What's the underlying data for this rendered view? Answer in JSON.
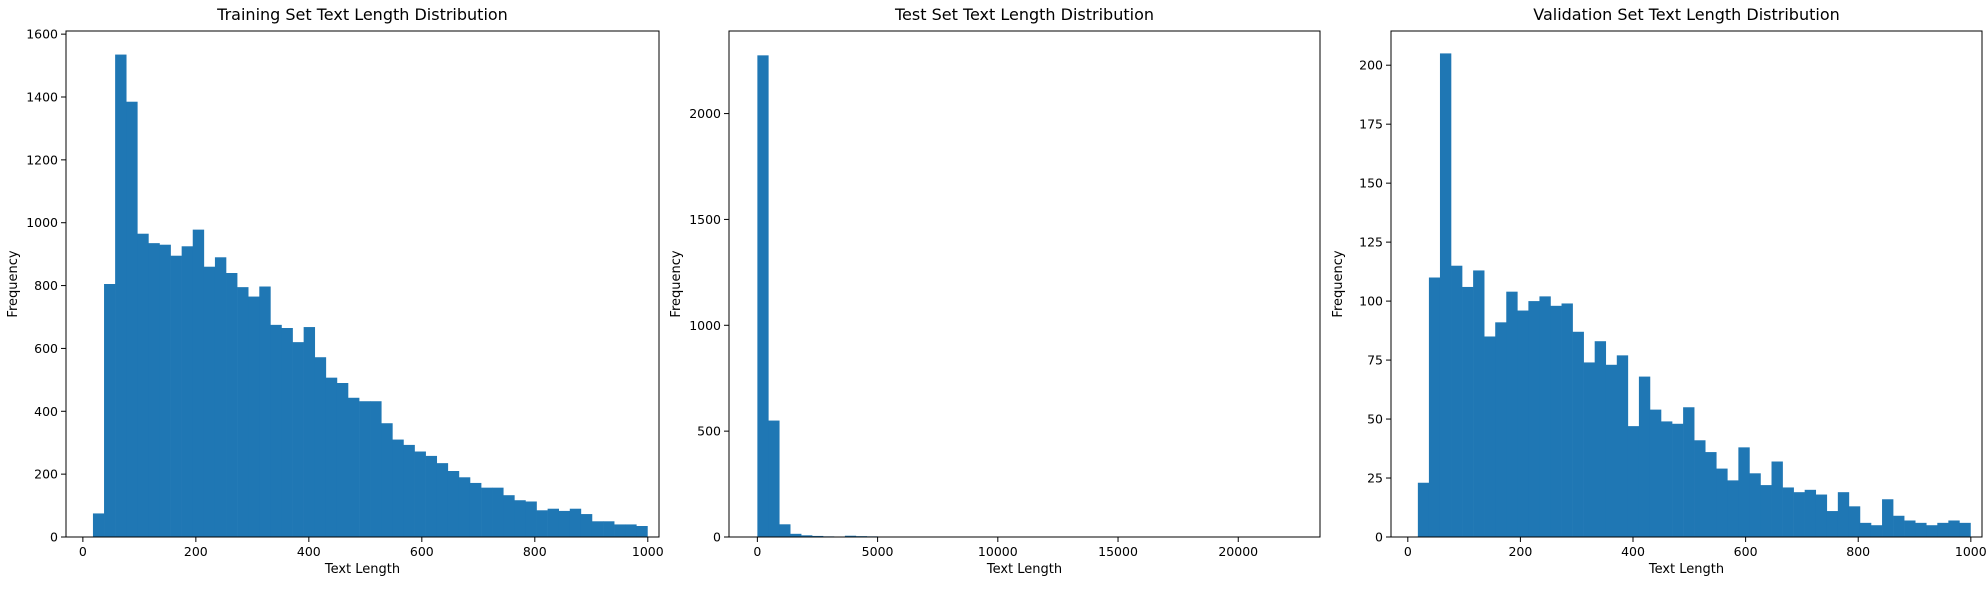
{
  "chart_data": [
    {
      "type": "bar",
      "title": "Training Set Text Length Distribution",
      "xlabel": "Text Length",
      "ylabel": "Frequency",
      "xlim": [
        -29.85,
        1019.85
      ],
      "ylim": [
        0,
        1610
      ],
      "xticks": [
        0,
        200,
        400,
        600,
        800,
        1000
      ],
      "yticks": [
        0,
        200,
        400,
        600,
        800,
        1000,
        1200,
        1400,
        1600
      ],
      "bin_start": 17.85,
      "bin_width": 19.63,
      "values": [
        75,
        805,
        1535,
        1385,
        965,
        935,
        930,
        895,
        925,
        978,
        860,
        890,
        840,
        795,
        765,
        797,
        675,
        665,
        620,
        668,
        572,
        507,
        490,
        443,
        432,
        432,
        362,
        310,
        293,
        272,
        258,
        235,
        210,
        190,
        172,
        157,
        157,
        133,
        117,
        113,
        85,
        90,
        83,
        90,
        73,
        50,
        50,
        40,
        40,
        35
      ],
      "color": "#1f77b4"
    },
    {
      "type": "bar",
      "title": "Test Set Text Length Distribution",
      "xlabel": "Text Length",
      "ylabel": "Frequency",
      "xlim": [
        -1180,
        23400
      ],
      "ylim": [
        0,
        2390
      ],
      "xticks": [
        0,
        5000,
        10000,
        15000,
        20000
      ],
      "yticks": [
        0,
        500,
        1000,
        1500,
        2000
      ],
      "bin_start": 0,
      "bin_width": 455,
      "values": [
        2275,
        550,
        60,
        15,
        8,
        5,
        3,
        2,
        6,
        4,
        3,
        2,
        1,
        1,
        1,
        1,
        1,
        1,
        1,
        1,
        1,
        1,
        1,
        1,
        1,
        1,
        1,
        1,
        1,
        1,
        1,
        1,
        1,
        1,
        1,
        1,
        1,
        1,
        1,
        1,
        1,
        1,
        1,
        1,
        1,
        1,
        1,
        1,
        1,
        1
      ],
      "color": "#1f77b4"
    },
    {
      "type": "bar",
      "title": "Validation Set Text Length Distribution",
      "xlabel": "Text Length",
      "ylabel": "Frequency",
      "xlim": [
        -29.85,
        1019.85
      ],
      "ylim": [
        0,
        214.5
      ],
      "xticks": [
        0,
        200,
        400,
        600,
        800,
        1000
      ],
      "yticks": [
        0,
        25,
        50,
        75,
        100,
        125,
        150,
        175,
        200
      ],
      "bin_start": 17.85,
      "bin_width": 19.63,
      "values": [
        23,
        110,
        205,
        115,
        106,
        113,
        85,
        91,
        104,
        96,
        100,
        102,
        98,
        99,
        87,
        74,
        83,
        73,
        77,
        47,
        68,
        54,
        49,
        48,
        55,
        41,
        36,
        29,
        24,
        38,
        27,
        22,
        32,
        21,
        19,
        20,
        18,
        11,
        19,
        13,
        6,
        5,
        16,
        9,
        7,
        6,
        5,
        6,
        7,
        6
      ],
      "color": "#1f77b4"
    }
  ]
}
